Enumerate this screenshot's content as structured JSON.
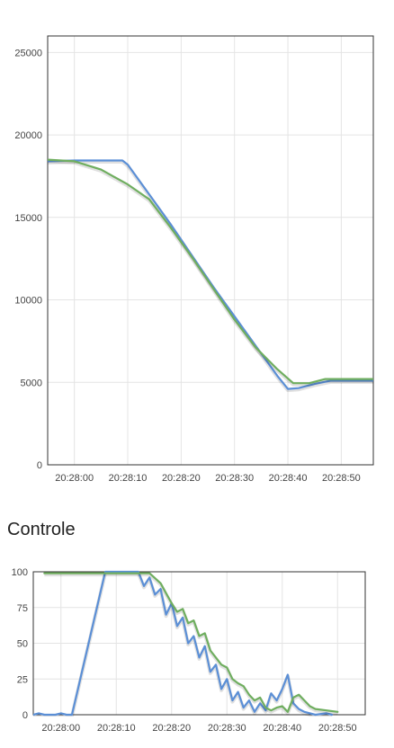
{
  "section_title": "Controle",
  "chart_data": [
    {
      "type": "line",
      "title": "",
      "xlabel": "",
      "ylabel": "",
      "grid": true,
      "x_range": [
        "20:27:55",
        "20:28:56"
      ],
      "ylim": [
        0,
        26000
      ],
      "x_ticks": [
        "20:28:00",
        "20:28:10",
        "20:28:20",
        "20:28:30",
        "20:28:40",
        "20:28:50"
      ],
      "y_ticks": [
        0,
        5000,
        10000,
        15000,
        20000,
        25000
      ],
      "colors": [
        "#5b8fd6",
        "#6fae5f"
      ],
      "series": [
        {
          "color": "#5b8fd6",
          "points": [
            [
              "20:27:55",
              18400
            ],
            [
              "20:28:00",
              18450
            ],
            [
              "20:28:05",
              18450
            ],
            [
              "20:28:09",
              18450
            ],
            [
              "20:28:10",
              18200
            ],
            [
              "20:28:14",
              16400
            ],
            [
              "20:28:18",
              14600
            ],
            [
              "20:28:22",
              12700
            ],
            [
              "20:28:26",
              10800
            ],
            [
              "20:28:30",
              9000
            ],
            [
              "20:28:34",
              7200
            ],
            [
              "20:28:38",
              5400
            ],
            [
              "20:28:40",
              4600
            ],
            [
              "20:28:42",
              4650
            ],
            [
              "20:28:45",
              4900
            ],
            [
              "20:28:48",
              5100
            ],
            [
              "20:28:56",
              5100
            ]
          ]
        },
        {
          "color": "#6fae5f",
          "points": [
            [
              "20:27:55",
              18500
            ],
            [
              "20:28:00",
              18400
            ],
            [
              "20:28:05",
              17900
            ],
            [
              "20:28:10",
              17000
            ],
            [
              "20:28:14",
              16100
            ],
            [
              "20:28:18",
              14400
            ],
            [
              "20:28:22",
              12600
            ],
            [
              "20:28:26",
              10700
            ],
            [
              "20:28:30",
              8800
            ],
            [
              "20:28:34",
              7100
            ],
            [
              "20:28:38",
              5800
            ],
            [
              "20:28:41",
              4950
            ],
            [
              "20:28:44",
              4950
            ],
            [
              "20:28:47",
              5200
            ],
            [
              "20:28:56",
              5200
            ]
          ]
        }
      ]
    },
    {
      "type": "line",
      "title": "Controle",
      "xlabel": "",
      "ylabel": "",
      "grid": true,
      "x_range": [
        "20:27:55",
        "20:28:55"
      ],
      "ylim": [
        0,
        100
      ],
      "x_ticks": [
        "20:28:00",
        "20:28:10",
        "20:28:20",
        "20:28:30",
        "20:28:40",
        "20:28:50"
      ],
      "y_ticks": [
        0,
        25,
        50,
        75,
        100
      ],
      "colors": [
        "#5b8fd6",
        "#6fae5f"
      ],
      "series": [
        {
          "color": "#5b8fd6",
          "points": [
            [
              "20:27:55",
              0
            ],
            [
              "20:27:56",
              1
            ],
            [
              "20:27:57",
              0
            ],
            [
              "20:27:59",
              0
            ],
            [
              "20:28:00",
              1
            ],
            [
              "20:28:01",
              0
            ],
            [
              "20:28:02",
              0
            ],
            [
              "20:28:08",
              100
            ],
            [
              "20:28:14",
              100
            ],
            [
              "20:28:15",
              90
            ],
            [
              "20:28:16",
              96
            ],
            [
              "20:28:17",
              84
            ],
            [
              "20:28:18",
              88
            ],
            [
              "20:28:19",
              70
            ],
            [
              "20:28:20",
              78
            ],
            [
              "20:28:21",
              62
            ],
            [
              "20:28:22",
              68
            ],
            [
              "20:28:23",
              50
            ],
            [
              "20:28:24",
              55
            ],
            [
              "20:28:25",
              40
            ],
            [
              "20:28:26",
              48
            ],
            [
              "20:28:27",
              30
            ],
            [
              "20:28:28",
              35
            ],
            [
              "20:28:29",
              18
            ],
            [
              "20:28:30",
              25
            ],
            [
              "20:28:31",
              10
            ],
            [
              "20:28:32",
              16
            ],
            [
              "20:28:33",
              5
            ],
            [
              "20:28:34",
              10
            ],
            [
              "20:28:35",
              2
            ],
            [
              "20:28:36",
              8
            ],
            [
              "20:28:37",
              3
            ],
            [
              "20:28:38",
              15
            ],
            [
              "20:28:39",
              10
            ],
            [
              "20:28:40",
              18
            ],
            [
              "20:28:41",
              28
            ],
            [
              "20:28:42",
              8
            ],
            [
              "20:28:43",
              4
            ],
            [
              "20:28:44",
              2
            ],
            [
              "20:28:46",
              0
            ],
            [
              "20:28:48",
              1
            ],
            [
              "20:28:49",
              0
            ]
          ]
        },
        {
          "color": "#6fae5f",
          "points": [
            [
              "20:27:57",
              99
            ],
            [
              "20:28:05",
              99
            ],
            [
              "20:28:10",
              99
            ],
            [
              "20:28:16",
              99
            ],
            [
              "20:28:18",
              92
            ],
            [
              "20:28:19",
              85
            ],
            [
              "20:28:20",
              78
            ],
            [
              "20:28:21",
              72
            ],
            [
              "20:28:22",
              74
            ],
            [
              "20:28:23",
              64
            ],
            [
              "20:28:24",
              66
            ],
            [
              "20:28:25",
              55
            ],
            [
              "20:28:26",
              57
            ],
            [
              "20:28:27",
              45
            ],
            [
              "20:28:28",
              40
            ],
            [
              "20:28:29",
              35
            ],
            [
              "20:28:30",
              33
            ],
            [
              "20:28:31",
              25
            ],
            [
              "20:28:32",
              22
            ],
            [
              "20:28:33",
              20
            ],
            [
              "20:28:34",
              14
            ],
            [
              "20:28:35",
              10
            ],
            [
              "20:28:36",
              12
            ],
            [
              "20:28:37",
              5
            ],
            [
              "20:28:38",
              3
            ],
            [
              "20:28:39",
              5
            ],
            [
              "20:28:40",
              6
            ],
            [
              "20:28:41",
              2
            ],
            [
              "20:28:42",
              12
            ],
            [
              "20:28:43",
              14
            ],
            [
              "20:28:44",
              10
            ],
            [
              "20:28:45",
              6
            ],
            [
              "20:28:46",
              4
            ],
            [
              "20:28:48",
              3
            ],
            [
              "20:28:50",
              2
            ]
          ]
        }
      ]
    }
  ]
}
